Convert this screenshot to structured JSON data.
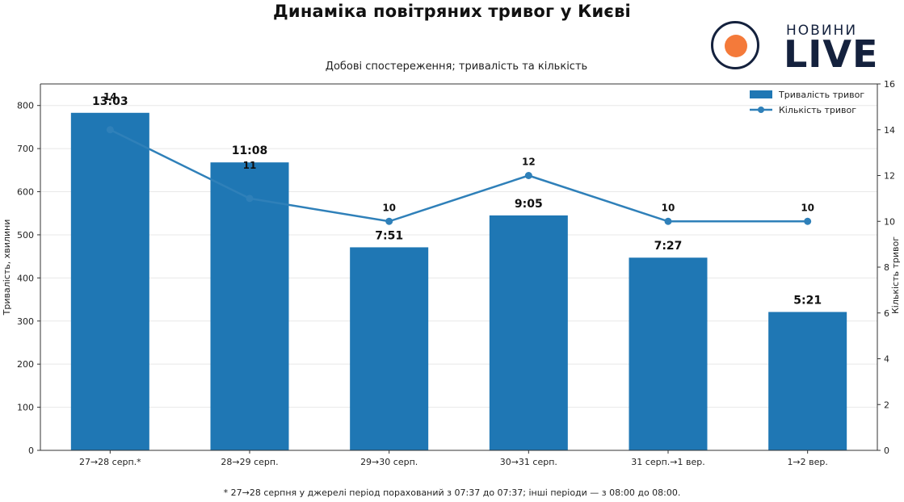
{
  "title": "Динаміка повітряних тривог у Києві",
  "subtitle": "Добові спостереження; тривалість та кількість",
  "footnote": "* 27→28 серпня у джерелі період порахований з 07:37 до 07:37; інші періоди — з 08:00 до 08:00.",
  "logo": {
    "top_text": "НОВИНИ",
    "main_text": "LIVE",
    "ring_color": "#14213d",
    "dot_color": "#f47a3a"
  },
  "colors": {
    "bar": "#1f77b4",
    "line": "#2f80b9",
    "grid": "#e8e8e8",
    "axis": "#333333"
  },
  "chart_data": {
    "type": "bar",
    "categories": [
      "27→28 серп.*",
      "28→29 серп.",
      "29→30 серп.",
      "30→31 серп.",
      "31 серп.→1 вер.",
      "1→2 вер."
    ],
    "series": [
      {
        "name": "Тривалість тривог",
        "type": "bar",
        "axis": "left",
        "values": [
          783,
          668,
          471,
          545,
          447,
          321
        ],
        "labels": [
          "13:03",
          "11:08",
          "7:51",
          "9:05",
          "7:27",
          "5:21"
        ]
      },
      {
        "name": "Кількість тривог",
        "type": "line",
        "axis": "right",
        "values": [
          14,
          11,
          10,
          12,
          10,
          10
        ],
        "labels": [
          "14",
          "11",
          "10",
          "12",
          "10",
          "10"
        ]
      }
    ],
    "ylabel": "Тривалість, хвилини",
    "y2label": "Кількість тривог",
    "ylim": [
      0,
      850
    ],
    "y2lim": [
      0,
      16
    ],
    "yticks": [
      0,
      100,
      200,
      300,
      400,
      500,
      600,
      700,
      800
    ],
    "y2ticks": [
      0,
      2,
      4,
      6,
      8,
      10,
      12,
      14,
      16
    ],
    "grid": true,
    "legend": "top-right"
  }
}
